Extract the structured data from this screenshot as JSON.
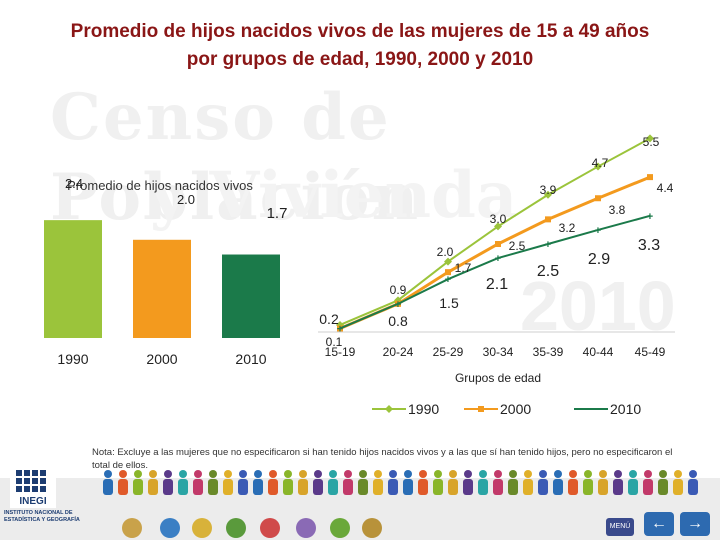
{
  "title": {
    "line1": "Promedio de hijos nacidos vivos de las mujeres de 15 a 49 años",
    "line2": "por grupos de edad, 1990, 2000 y 2010"
  },
  "watermark": {
    "line1": "Censo de Población",
    "line2": "y Vivienda",
    "line3": "2010"
  },
  "colors": {
    "s1990": "#9bc43b",
    "s2000": "#f39a1e",
    "s2010": "#1b7a4a",
    "title": "#8a1616"
  },
  "chart_data": [
    {
      "type": "bar",
      "title": "Promedio de hijos nacidos vivos",
      "categories": [
        "1990",
        "2000",
        "2010"
      ],
      "values": [
        2.4,
        2.0,
        1.7
      ],
      "value_labels": [
        "2.4",
        "2.0",
        "1.7"
      ],
      "ylim": [
        0,
        2.8
      ]
    },
    {
      "type": "line",
      "xlabel": "Grupos de edad",
      "categories": [
        "15-19",
        "20-24",
        "25-29",
        "30-34",
        "35-39",
        "40-44",
        "45-49"
      ],
      "ylim": [
        0,
        6
      ],
      "legend": "bottom",
      "series": [
        {
          "name": "1990",
          "values": [
            0.2,
            0.9,
            2.0,
            3.0,
            3.9,
            4.7,
            5.5
          ],
          "labels": [
            "0.2",
            "0.9",
            "2.0",
            "3.0",
            "3.9",
            "4.7",
            "5.5"
          ]
        },
        {
          "name": "2000",
          "values": [
            0.1,
            0.8,
            1.7,
            2.5,
            3.2,
            3.8,
            4.4
          ],
          "labels": [
            "0.1",
            "0.8",
            "1.7",
            "2.5",
            "3.2",
            "3.8",
            "4.4"
          ]
        },
        {
          "name": "2010",
          "values": [
            0.1,
            0.8,
            1.5,
            2.1,
            2.5,
            2.9,
            3.3
          ],
          "labels": [
            "",
            "",
            "1.5",
            "2.1",
            "2.5",
            "2.9",
            "3.3"
          ]
        }
      ]
    }
  ],
  "note": "Nota: Excluye a las mujeres que no especificaron si han tenido hijos nacidos vivos y a las que sí han tenido hijos, pero no especificaron el total de ellos.",
  "footer": {
    "logo_name": "INEGI",
    "logo_caption": "INSTITUTO NACIONAL DE ESTADÍSTICA Y GEOGRAFÍA",
    "menu_label": "MENÚ",
    "prev_icon": "arrow-left-icon",
    "next_icon": "arrow-right-icon"
  }
}
